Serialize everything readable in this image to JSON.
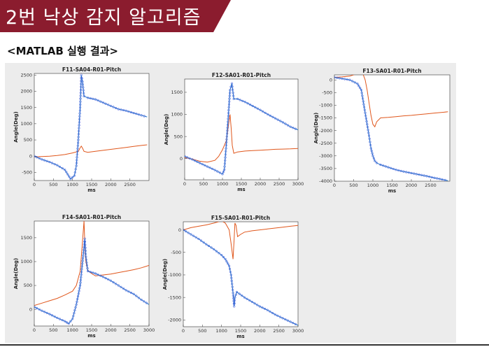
{
  "header": {
    "title": "2번 낙상 감지 알고리즘",
    "subtitle": "<MATLAB 실행 결과>",
    "banner_color": "#8b1c2e"
  },
  "colors": {
    "series_blue": "#1f77c4",
    "series_orange": "#e0561b",
    "marker_blue": "#3b4fe0"
  },
  "chart_data": [
    {
      "type": "line",
      "title": "F11-SA04-R01-Pitch",
      "xlabel": "ms",
      "ylabel": "Angle(Deg)",
      "xlim": [
        0,
        3000
      ],
      "ylim": [
        -750,
        2550
      ],
      "xticks": [
        0,
        500,
        1000,
        1500,
        2000,
        2500
      ],
      "yticks": [
        -500,
        0,
        500,
        1000,
        1500,
        2000,
        2500
      ],
      "series": [
        {
          "color": "#1f77c4",
          "markers": true,
          "x": [
            0,
            200,
            400,
            600,
            800,
            950,
            1050,
            1100,
            1150,
            1200,
            1230,
            1260,
            1300,
            1400,
            1600,
            1800,
            2000,
            2200,
            2400,
            2600,
            2800,
            2950
          ],
          "y": [
            0,
            -100,
            -180,
            -280,
            -420,
            -700,
            -600,
            -300,
            500,
            1500,
            2500,
            2300,
            1850,
            1800,
            1750,
            1650,
            1550,
            1450,
            1400,
            1330,
            1260,
            1210
          ]
        },
        {
          "color": "#e0561b",
          "markers": false,
          "x": [
            0,
            200,
            400,
            600,
            800,
            1000,
            1150,
            1200,
            1230,
            1260,
            1300,
            1400,
            1600,
            1800,
            2000,
            2200,
            2400,
            2600,
            2800,
            2950
          ],
          "y": [
            -20,
            -10,
            0,
            20,
            50,
            100,
            150,
            260,
            310,
            250,
            150,
            120,
            150,
            180,
            210,
            240,
            270,
            300,
            330,
            350
          ]
        }
      ]
    },
    {
      "type": "line",
      "title": "F12-SA01-R01-Pitch",
      "xlabel": "ms",
      "ylabel": "Angle(Deg)",
      "xlim": [
        0,
        3000
      ],
      "ylim": [
        -480,
        1800
      ],
      "xticks": [
        0,
        500,
        1000,
        1500,
        2000,
        2500,
        3000
      ],
      "yticks": [
        0,
        500,
        1000,
        1500
      ],
      "series": [
        {
          "color": "#1f77c4",
          "markers": true,
          "x": [
            0,
            200,
            400,
            600,
            800,
            1000,
            1050,
            1100,
            1150,
            1200,
            1250,
            1300,
            1400,
            1600,
            1800,
            2000,
            2200,
            2400,
            2600,
            2800,
            3000
          ],
          "y": [
            50,
            -20,
            -100,
            -180,
            -260,
            -350,
            -250,
            300,
            900,
            1550,
            1700,
            1350,
            1350,
            1280,
            1190,
            1100,
            1000,
            910,
            820,
            720,
            650
          ]
        },
        {
          "color": "#e0561b",
          "markers": false,
          "x": [
            0,
            200,
            400,
            600,
            800,
            900,
            1000,
            1100,
            1150,
            1200,
            1230,
            1260,
            1300,
            1400,
            1600,
            1800,
            2000,
            2200,
            2400,
            2600,
            2800,
            3000
          ],
          "y": [
            20,
            -10,
            -60,
            -80,
            -40,
            50,
            200,
            400,
            700,
            1000,
            700,
            300,
            120,
            150,
            170,
            180,
            190,
            200,
            210,
            215,
            220,
            230
          ]
        }
      ]
    },
    {
      "type": "line",
      "title": "F13-SA01-R01-Pitch",
      "xlabel": "ms",
      "ylabel": "Angle(Deg)",
      "xlim": [
        0,
        3000
      ],
      "ylim": [
        -4000,
        200
      ],
      "xticks": [
        0,
        500,
        1000,
        1500,
        2000,
        2500
      ],
      "yticks": [
        -4000,
        -3500,
        -3000,
        -2500,
        -2000,
        -1500,
        -1000,
        -500,
        0
      ],
      "series": [
        {
          "color": "#1f77c4",
          "markers": true,
          "x": [
            0,
            200,
            400,
            600,
            700,
            800,
            900,
            950,
            1000,
            1050,
            1100,
            1200,
            1400,
            1600,
            1800,
            2000,
            2200,
            2400,
            2600,
            2800,
            2950
          ],
          "y": [
            100,
            50,
            0,
            -150,
            -400,
            -1300,
            -2200,
            -2700,
            -3000,
            -3200,
            -3280,
            -3350,
            -3450,
            -3550,
            -3620,
            -3680,
            -3740,
            -3800,
            -3870,
            -3930,
            -3980
          ]
        },
        {
          "color": "#e0561b",
          "markers": false,
          "x": [
            0,
            200,
            400,
            600,
            700,
            750,
            800,
            850,
            900,
            950,
            1000,
            1050,
            1100,
            1200,
            1400,
            1600,
            1800,
            2000,
            2200,
            2400,
            2600,
            2800,
            2950
          ],
          "y": [
            100,
            120,
            150,
            250,
            300,
            200,
            0,
            -400,
            -900,
            -1400,
            -1750,
            -1850,
            -1650,
            -1500,
            -1480,
            -1450,
            -1420,
            -1400,
            -1370,
            -1340,
            -1310,
            -1280,
            -1260
          ]
        }
      ]
    },
    {
      "type": "line",
      "title": "F14-SA01-R01-Pitch",
      "xlabel": "ms",
      "ylabel": "Angle(Deg)",
      "xlim": [
        0,
        3000
      ],
      "ylim": [
        -350,
        1850
      ],
      "xticks": [
        0,
        500,
        1000,
        1500,
        2000,
        2500,
        3000
      ],
      "yticks": [
        0,
        500,
        1000,
        1500
      ],
      "series": [
        {
          "color": "#1f77c4",
          "markers": true,
          "x": [
            0,
            200,
            400,
            600,
            800,
            900,
            1000,
            1100,
            1200,
            1250,
            1300,
            1320,
            1350,
            1400,
            1600,
            1800,
            2000,
            2200,
            2400,
            2600,
            2800,
            3000
          ],
          "y": [
            50,
            -30,
            -100,
            -180,
            -250,
            -300,
            -200,
            100,
            500,
            900,
            1300,
            1480,
            1100,
            800,
            750,
            680,
            600,
            500,
            400,
            320,
            200,
            100
          ]
        },
        {
          "color": "#e0561b",
          "markers": false,
          "x": [
            0,
            200,
            400,
            600,
            800,
            1000,
            1100,
            1200,
            1250,
            1300,
            1320,
            1350,
            1400,
            1500,
            1600,
            1800,
            2000,
            2200,
            2400,
            2600,
            2800,
            3000
          ],
          "y": [
            80,
            130,
            180,
            230,
            300,
            380,
            500,
            800,
            1300,
            1850,
            1400,
            1000,
            820,
            750,
            700,
            720,
            740,
            770,
            800,
            830,
            870,
            920
          ]
        }
      ]
    },
    {
      "type": "line",
      "title": "F15-SA01-R01-Pitch",
      "xlabel": "ms",
      "ylabel": "Angle(Deg)",
      "xlim": [
        0,
        3000
      ],
      "ylim": [
        -2150,
        180
      ],
      "xticks": [
        0,
        500,
        1000,
        1500,
        2000,
        2500,
        3000
      ],
      "yticks": [
        -2000,
        -1500,
        -1000,
        -500,
        0
      ],
      "series": [
        {
          "color": "#1f77c4",
          "markers": true,
          "x": [
            0,
            200,
            400,
            600,
            800,
            1000,
            1100,
            1200,
            1250,
            1300,
            1330,
            1350,
            1400,
            1600,
            1800,
            2000,
            2200,
            2400,
            2600,
            2800,
            3000
          ],
          "y": [
            0,
            -100,
            -200,
            -320,
            -430,
            -560,
            -650,
            -800,
            -1000,
            -1400,
            -1700,
            -1500,
            -1380,
            -1500,
            -1600,
            -1700,
            -1780,
            -1880,
            -1960,
            -2040,
            -2120
          ]
        },
        {
          "color": "#e0561b",
          "markers": false,
          "x": [
            0,
            200,
            400,
            600,
            800,
            1000,
            1100,
            1200,
            1250,
            1300,
            1330,
            1350,
            1380,
            1420,
            1500,
            1600,
            1800,
            2000,
            2200,
            2400,
            2600,
            2800,
            3000
          ],
          "y": [
            0,
            50,
            80,
            110,
            150,
            200,
            150,
            0,
            -300,
            -650,
            -200,
            150,
            100,
            -150,
            -100,
            -50,
            -20,
            0,
            20,
            40,
            60,
            80,
            100
          ]
        }
      ]
    }
  ]
}
